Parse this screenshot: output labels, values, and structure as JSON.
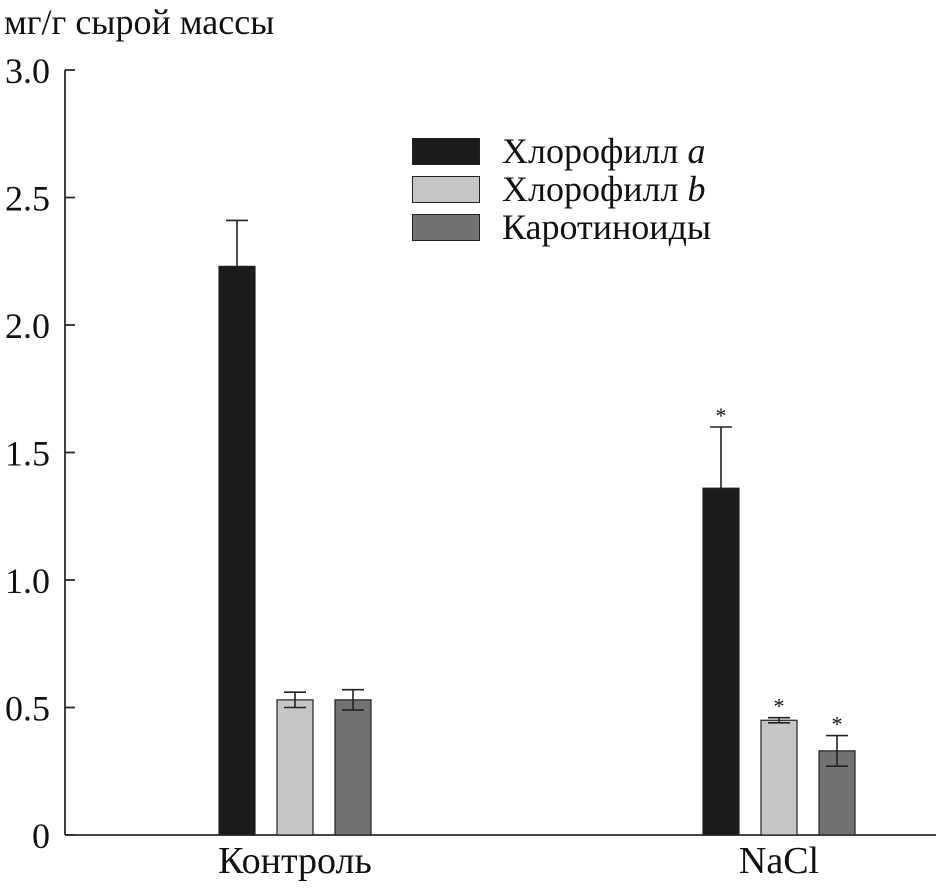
{
  "chart_data": {
    "type": "bar",
    "title": "",
    "ylabel": "мг/г сырой массы",
    "xlabel": "",
    "ylim": [
      0,
      3.0
    ],
    "yticks": [
      0,
      0.5,
      1.0,
      1.5,
      2.0,
      2.5,
      3.0
    ],
    "ytick_labels": [
      "0",
      "0.5",
      "1.0",
      "1.5",
      "2.0",
      "2.5",
      "3.0"
    ],
    "categories": [
      "Контроль",
      "NaCl"
    ],
    "series": [
      {
        "name": "Хлорофилл a",
        "legend_base": "Хлорофилл ",
        "legend_suffix": "a",
        "color": "#1c1a1b",
        "values": [
          2.23,
          1.36
        ],
        "errors": [
          0.18,
          0.24
        ],
        "significance": [
          "",
          "*"
        ]
      },
      {
        "name": "Хлорофилл b",
        "legend_base": "Хлорофилл ",
        "legend_suffix": "b",
        "color": "#c6c6c6",
        "values": [
          0.53,
          0.45
        ],
        "errors": [
          0.03,
          0.01
        ],
        "significance": [
          "",
          "*"
        ]
      },
      {
        "name": "Каротиноиды",
        "legend_base": "Каротиноиды",
        "legend_suffix": "",
        "color": "#717274",
        "values": [
          0.53,
          0.33
        ],
        "errors": [
          0.04,
          0.06
        ],
        "significance": [
          "",
          "*"
        ]
      }
    ]
  }
}
